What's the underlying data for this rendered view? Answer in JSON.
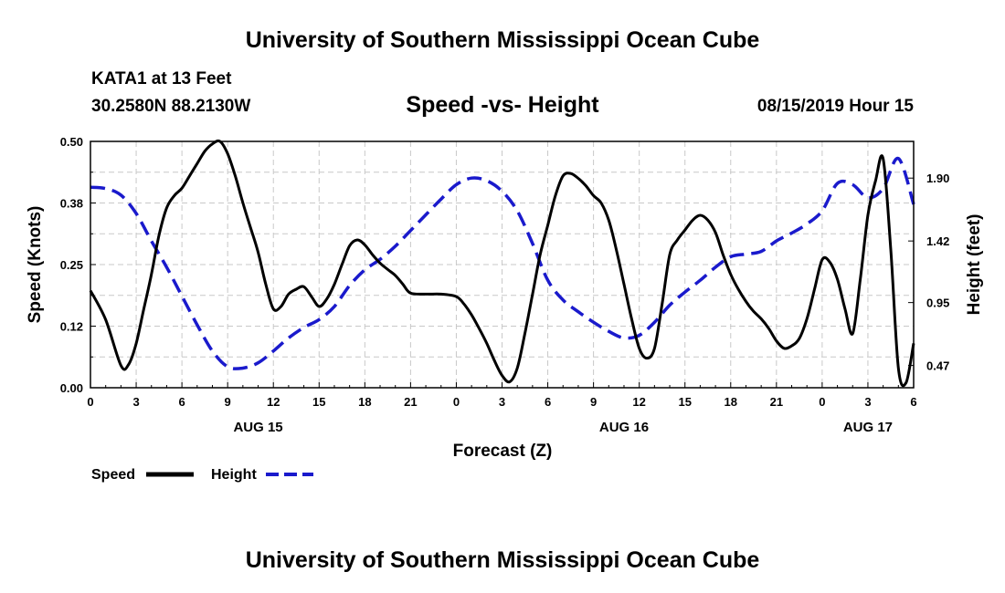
{
  "header": {
    "top_title": "University of Southern Mississippi Ocean Cube",
    "bottom_title": "University of Southern Mississippi Ocean Cube",
    "station": "KATA1 at 13 Feet",
    "coordinates": "30.2580N 88.2130W",
    "datetime": "08/15/2019 Hour 15"
  },
  "chart_data": {
    "type": "line",
    "title": "Speed -vs- Height",
    "xlabel": "Forecast (Z)",
    "ylabel_left": "Speed (Knots)",
    "ylabel_right": "Height (feet)",
    "xlim": [
      0,
      54
    ],
    "ylim_left": [
      0,
      0.5
    ],
    "ylim_right": [
      0.3,
      2.18
    ],
    "left_ticks": [
      "0.00",
      "0.12",
      "0.25",
      "0.38",
      "0.50"
    ],
    "left_tick_values": [
      0,
      0.125,
      0.25,
      0.375,
      0.5
    ],
    "right_ticks": [
      "0.47",
      "0.95",
      "1.42",
      "1.90"
    ],
    "right_tick_values": [
      0.47,
      0.95,
      1.42,
      1.9
    ],
    "x_tick_labels": [
      "0",
      "3",
      "6",
      "9",
      "12",
      "15",
      "18",
      "21",
      "0",
      "3",
      "6",
      "9",
      "12",
      "15",
      "18",
      "21",
      "0",
      "3",
      "6"
    ],
    "x_date_labels": [
      {
        "x": 11,
        "label": "AUG 15"
      },
      {
        "x": 35,
        "label": "AUG 16"
      },
      {
        "x": 51,
        "label": "AUG 17"
      }
    ],
    "legend": [
      {
        "name": "Speed",
        "color": "#000000",
        "style": "solid"
      },
      {
        "name": "Height",
        "color": "#1a1acc",
        "style": "dashed"
      }
    ],
    "grid": true,
    "series": [
      {
        "name": "Speed",
        "axis": "left",
        "color": "#000000",
        "x": [
          0,
          1,
          2,
          2.5,
          3,
          3.5,
          4,
          4.5,
          5,
          5.5,
          6,
          6.5,
          7,
          7.5,
          8,
          8.5,
          9,
          9.5,
          10,
          10.5,
          11,
          11.5,
          12,
          12.5,
          13,
          13.5,
          14,
          14.5,
          15,
          15.5,
          16,
          16.5,
          17,
          17.5,
          18,
          18.5,
          19,
          19.5,
          20,
          20.5,
          21,
          22,
          23,
          24,
          24.5,
          25,
          25.5,
          26,
          26.5,
          27,
          27.5,
          28,
          28.5,
          29,
          29.5,
          30,
          30.5,
          31,
          31.5,
          32,
          32.5,
          33,
          33.5,
          34,
          34.5,
          35,
          35.5,
          36,
          36.5,
          37,
          37.5,
          38,
          38.5,
          39,
          39.5,
          40,
          40.5,
          41,
          41.5,
          42,
          42.5,
          43,
          43.5,
          44,
          44.5,
          45,
          45.5,
          46,
          46.5,
          47,
          47.5,
          48,
          48.5,
          49,
          49.5,
          50,
          50.5,
          51,
          51.5,
          52,
          52.5,
          53,
          53.5,
          54
        ],
        "values": [
          0.197,
          0.138,
          0.045,
          0.047,
          0.09,
          0.16,
          0.23,
          0.31,
          0.365,
          0.39,
          0.405,
          0.43,
          0.455,
          0.48,
          0.495,
          0.5,
          0.475,
          0.43,
          0.375,
          0.325,
          0.275,
          0.21,
          0.16,
          0.165,
          0.19,
          0.2,
          0.205,
          0.185,
          0.165,
          0.18,
          0.21,
          0.25,
          0.288,
          0.3,
          0.29,
          0.27,
          0.253,
          0.24,
          0.228,
          0.21,
          0.192,
          0.19,
          0.19,
          0.185,
          0.17,
          0.148,
          0.12,
          0.09,
          0.055,
          0.025,
          0.012,
          0.04,
          0.11,
          0.19,
          0.27,
          0.33,
          0.39,
          0.43,
          0.435,
          0.425,
          0.41,
          0.39,
          0.375,
          0.34,
          0.28,
          0.21,
          0.14,
          0.08,
          0.06,
          0.08,
          0.17,
          0.27,
          0.3,
          0.32,
          0.34,
          0.35,
          0.34,
          0.315,
          0.27,
          0.23,
          0.2,
          0.175,
          0.155,
          0.14,
          0.12,
          0.095,
          0.08,
          0.085,
          0.1,
          0.14,
          0.2,
          0.26,
          0.255,
          0.22,
          0.16,
          0.11,
          0.22,
          0.35,
          0.42,
          0.465,
          0.28,
          0.04,
          0.01,
          0.09
        ]
      },
      {
        "name": "Height",
        "axis": "right",
        "color": "#1a1acc",
        "x": [
          0,
          1,
          2,
          3,
          4,
          5,
          6,
          7,
          8,
          9,
          10,
          11,
          12,
          13,
          14,
          15,
          16,
          17,
          18,
          19,
          20,
          21,
          22,
          23,
          24,
          25,
          26,
          27,
          28,
          29,
          30,
          31,
          32,
          33,
          34,
          35,
          36,
          37,
          38,
          39,
          40,
          41,
          42,
          43,
          44,
          45,
          46,
          47,
          48,
          49,
          50,
          51,
          52,
          53,
          54
        ],
        "values": [
          1.83,
          1.82,
          1.77,
          1.63,
          1.42,
          1.22,
          1.0,
          0.78,
          0.58,
          0.46,
          0.45,
          0.49,
          0.58,
          0.68,
          0.76,
          0.82,
          0.92,
          1.08,
          1.2,
          1.28,
          1.38,
          1.5,
          1.62,
          1.74,
          1.85,
          1.9,
          1.88,
          1.8,
          1.65,
          1.4,
          1.12,
          0.97,
          0.88,
          0.8,
          0.73,
          0.68,
          0.7,
          0.8,
          0.93,
          1.03,
          1.12,
          1.22,
          1.3,
          1.32,
          1.34,
          1.42,
          1.48,
          1.55,
          1.65,
          1.86,
          1.85,
          1.75,
          1.82,
          2.05,
          1.7
        ]
      }
    ]
  }
}
